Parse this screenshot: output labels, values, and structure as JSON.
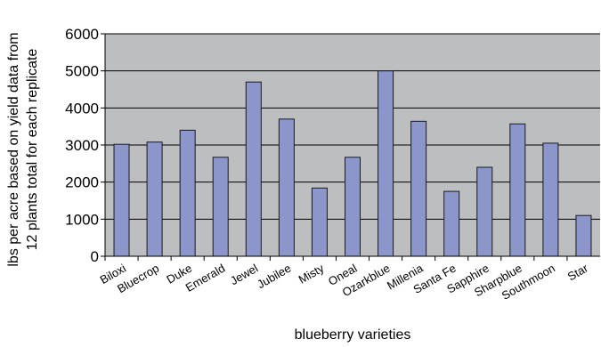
{
  "chart_data": {
    "type": "bar",
    "title": "",
    "xlabel": "blueberry varieties",
    "ylabel_lines": [
      "lbs per acre based on yield data from",
      "12 plants total for each replicate"
    ],
    "ylim": [
      0,
      6000
    ],
    "yticks": [
      0,
      1000,
      2000,
      3000,
      4000,
      5000,
      6000
    ],
    "grid": true,
    "categories": [
      "Biloxi",
      "Bluecrop",
      "Duke",
      "Emerald",
      "Jewel",
      "Jubilee",
      "Misty",
      "Oneal",
      "Ozarkblue",
      "Millenia",
      "Santa Fe",
      "Sapphire",
      "Sharpblue",
      "Southmoon",
      "Star"
    ],
    "values": [
      3020,
      3080,
      3400,
      2670,
      4700,
      3700,
      1840,
      2670,
      5000,
      3640,
      1750,
      2400,
      3570,
      3050,
      1100
    ],
    "colors": {
      "bar": "#8c96cb",
      "bar_edge": "#1a1a1a",
      "plot_bg": "#bcbec0",
      "grid": "#000000"
    }
  }
}
